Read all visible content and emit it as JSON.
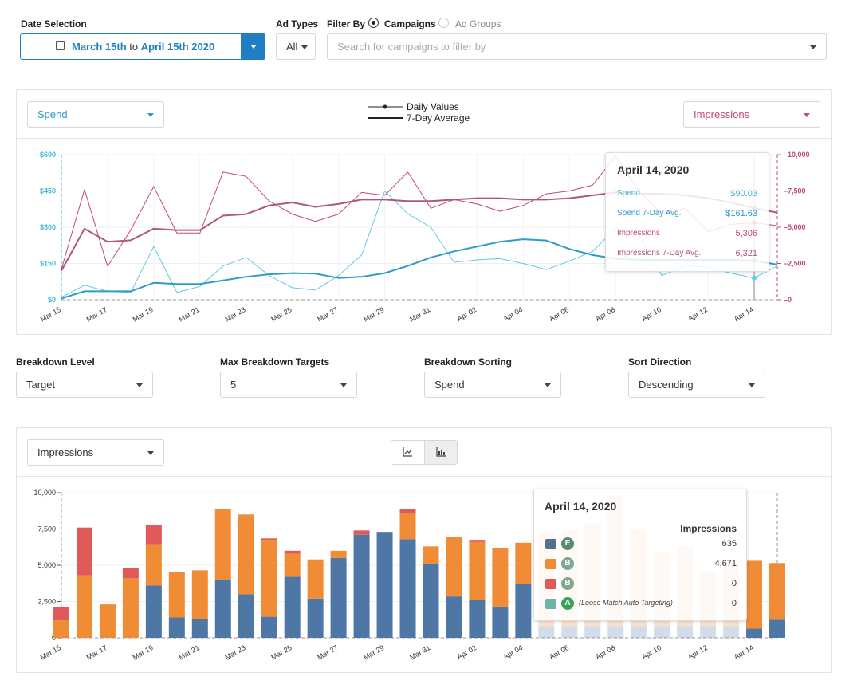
{
  "filters": {
    "date_label": "Date Selection",
    "date_start": "March 15th",
    "date_to": "to",
    "date_end": "April 15th 2020",
    "ad_types_label": "Ad Types",
    "ad_types_value": "All",
    "filter_by_label": "Filter By",
    "radio_campaigns": "Campaigns",
    "radio_ad_groups": "Ad Groups",
    "search_placeholder": "Search for campaigns to filter by"
  },
  "top_chart": {
    "left_metric": "Spend",
    "right_metric": "Impressions",
    "legend_daily": "Daily Values",
    "legend_avg": "7-Day Average",
    "left_ticks": [
      "$0",
      "$150",
      "$300",
      "$450",
      "$600"
    ],
    "right_ticks": [
      "0",
      "2,500",
      "5,000",
      "7,500",
      "10,000"
    ],
    "tooltip": {
      "title": "April 14, 2020",
      "rows": [
        {
          "label": "Spend",
          "value": "$90.03",
          "color": "#3fb7d6"
        },
        {
          "label": "Spend 7-Day Avg.",
          "value": "$161.63",
          "color": "#2a9cc4"
        },
        {
          "label": "Impressions",
          "value": "5,306",
          "color": "#c2487a"
        },
        {
          "label": "Impressions 7-Day Avg.",
          "value": "6,321",
          "color": "#b05580"
        }
      ]
    }
  },
  "breakdown": {
    "level_label": "Breakdown Level",
    "level_value": "Target",
    "max_label": "Max Breakdown Targets",
    "max_value": "5",
    "sorting_label": "Breakdown Sorting",
    "sorting_value": "Spend",
    "direction_label": "Sort Direction",
    "direction_value": "Descending"
  },
  "bottom_chart": {
    "metric": "Impressions",
    "y_ticks": [
      "0",
      "2,500",
      "5,000",
      "7,500",
      "10,000"
    ],
    "tooltip": {
      "title": "April 14, 2020",
      "column_header": "Impressions",
      "rows": [
        {
          "badge": "E",
          "value": "635",
          "swatch": "#56708f",
          "badge_color": "#5a8a72",
          "label": ""
        },
        {
          "badge": "B",
          "value": "4,671",
          "swatch": "#f08c35",
          "badge_color": "#7fa892",
          "label": ""
        },
        {
          "badge": "B",
          "value": "0",
          "swatch": "#e05a5a",
          "badge_color": "#7fa892",
          "label": ""
        },
        {
          "badge": "A",
          "value": "0",
          "swatch": "#6fb3aa",
          "badge_color": "#3aa35a",
          "label": "(Loose Match Auto Targeting)"
        }
      ]
    }
  },
  "x_labels": [
    "Mar 15",
    "Mar 17",
    "Mar 19",
    "Mar 21",
    "Mar 23",
    "Mar 25",
    "Mar 27",
    "Mar 29",
    "Mar 31",
    "Apr 02",
    "Apr 04",
    "Apr 06",
    "Apr 08",
    "Apr 10",
    "Apr 12",
    "Apr 14"
  ],
  "chart_data": [
    {
      "type": "line",
      "x": [
        "Mar 15",
        "Mar 16",
        "Mar 17",
        "Mar 18",
        "Mar 19",
        "Mar 20",
        "Mar 21",
        "Mar 22",
        "Mar 23",
        "Mar 24",
        "Mar 25",
        "Mar 26",
        "Mar 27",
        "Mar 28",
        "Mar 29",
        "Mar 30",
        "Mar 31",
        "Apr 01",
        "Apr 02",
        "Apr 03",
        "Apr 04",
        "Apr 05",
        "Apr 06",
        "Apr 07",
        "Apr 08",
        "Apr 09",
        "Apr 10",
        "Apr 11",
        "Apr 12",
        "Apr 13",
        "Apr 14",
        "Apr 15"
      ],
      "ylim_left": [
        0,
        600
      ],
      "ylim_right": [
        0,
        10000
      ],
      "series": [
        {
          "name": "Spend",
          "axis": "left",
          "color": "#5ccbe6",
          "values": [
            10,
            60,
            35,
            30,
            220,
            30,
            55,
            140,
            175,
            100,
            50,
            40,
            100,
            185,
            450,
            355,
            300,
            155,
            165,
            170,
            150,
            125,
            160,
            200,
            295,
            270,
            100,
            140,
            135,
            110,
            90,
            140
          ]
        },
        {
          "name": "Spend 7-Day Avg.",
          "axis": "left",
          "color": "#2e9cc4",
          "values": [
            5,
            35,
            35,
            35,
            70,
            65,
            65,
            80,
            95,
            105,
            110,
            108,
            90,
            95,
            110,
            140,
            175,
            200,
            220,
            240,
            250,
            245,
            210,
            185,
            170,
            165,
            165,
            165,
            165,
            165,
            162,
            145
          ]
        },
        {
          "name": "Impressions",
          "axis": "right",
          "color": "#c2487a",
          "values": [
            2100,
            7600,
            2300,
            4800,
            7800,
            4600,
            4600,
            8800,
            8500,
            6800,
            5900,
            5400,
            5900,
            7400,
            7200,
            8800,
            6300,
            6900,
            6600,
            6100,
            6500,
            7300,
            7500,
            7900,
            9900,
            7500,
            5900,
            6300,
            4700,
            5200,
            5306,
            5100
          ]
        },
        {
          "name": "Impressions 7-Day Avg.",
          "axis": "right",
          "color": "#b05580",
          "values": [
            2000,
            4900,
            4000,
            4100,
            4900,
            4800,
            4800,
            5800,
            5900,
            6500,
            6700,
            6400,
            6600,
            6900,
            6900,
            6800,
            6800,
            6900,
            7000,
            7000,
            6900,
            6900,
            7000,
            7200,
            7400,
            7300,
            7300,
            7200,
            7000,
            6700,
            6321,
            6000
          ]
        }
      ]
    },
    {
      "type": "bar",
      "stacked": true,
      "categories": [
        "Mar 15",
        "Mar 16",
        "Mar 17",
        "Mar 18",
        "Mar 19",
        "Mar 20",
        "Mar 21",
        "Mar 22",
        "Mar 23",
        "Mar 24",
        "Mar 25",
        "Mar 26",
        "Mar 27",
        "Mar 28",
        "Mar 29",
        "Mar 30",
        "Mar 31",
        "Apr 01",
        "Apr 02",
        "Apr 03",
        "Apr 04",
        "Apr 05",
        "Apr 06",
        "Apr 07",
        "Apr 08",
        "Apr 09",
        "Apr 10",
        "Apr 11",
        "Apr 12",
        "Apr 13",
        "Apr 14",
        "Apr 15"
      ],
      "ylim": [
        0,
        10000
      ],
      "series": [
        {
          "color": "#4f77a6",
          "values": [
            0,
            0,
            0,
            0,
            3600,
            1400,
            1300,
            4000,
            3000,
            1450,
            4200,
            2700,
            5500,
            7100,
            7300,
            6800,
            5100,
            2850,
            2600,
            2150,
            3700,
            800,
            800,
            800,
            800,
            800,
            800,
            800,
            800,
            800,
            635,
            1250
          ]
        },
        {
          "color": "#f08c35",
          "values": [
            1200,
            4300,
            2300,
            4100,
            2850,
            3150,
            3350,
            4850,
            5500,
            5300,
            1600,
            2700,
            500,
            0,
            0,
            1750,
            1200,
            4100,
            4000,
            4050,
            2850,
            6500,
            6700,
            7100,
            9000,
            6700,
            5100,
            5500,
            3800,
            4300,
            4671,
            3900
          ]
        },
        {
          "color": "#e05a5a",
          "values": [
            900,
            3300,
            0,
            700,
            1350,
            0,
            0,
            0,
            0,
            100,
            200,
            0,
            0,
            300,
            0,
            300,
            0,
            0,
            150,
            0,
            0,
            0,
            0,
            0,
            0,
            0,
            0,
            0,
            0,
            0,
            0,
            0
          ]
        }
      ]
    }
  ]
}
